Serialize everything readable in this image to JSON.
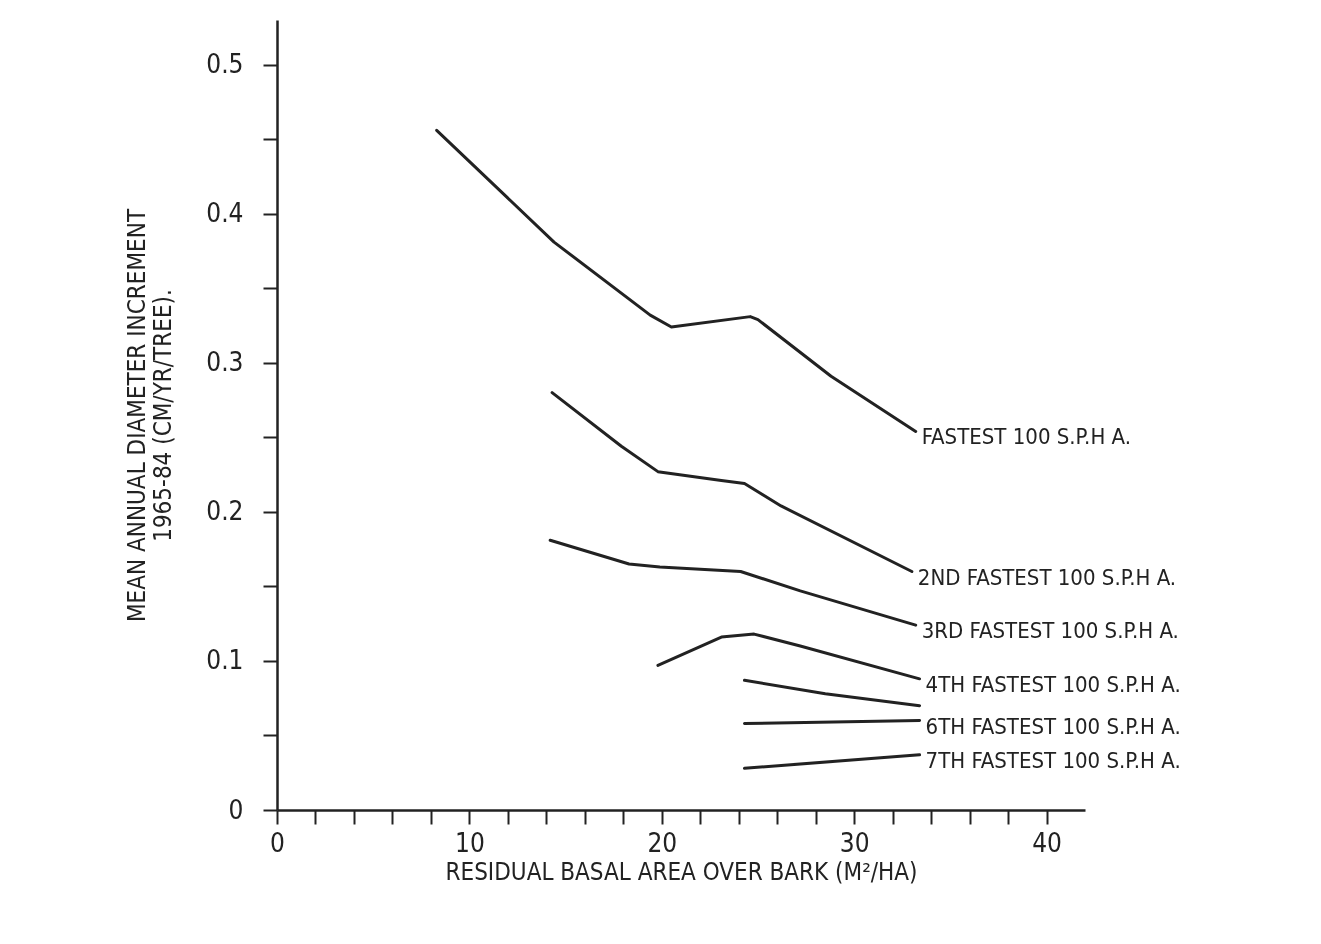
{
  "chart_data": {
    "type": "line",
    "xlabel": "RESIDUAL BASAL AREA OVER BARK (M²/HA)",
    "ylabel": "MEAN ANNUAL DIAMETER INCREMENT\n1965-84 (CM/YR/TREE).",
    "xlim": [
      0,
      42
    ],
    "ylim": [
      0,
      0.53
    ],
    "xticks": [
      0,
      {
        "value": 2,
        "label": null
      },
      {
        "value": 4,
        "label": null
      },
      {
        "value": 6,
        "label": null
      },
      {
        "value": 8,
        "label": null
      },
      10,
      {
        "value": 12,
        "label": null
      },
      {
        "value": 14,
        "label": null
      },
      {
        "value": 16,
        "label": null
      },
      {
        "value": 18,
        "label": null
      },
      20,
      {
        "value": 22,
        "label": null
      },
      {
        "value": 24,
        "label": null
      },
      {
        "value": 26,
        "label": null
      },
      {
        "value": 28,
        "label": null
      },
      30,
      {
        "value": 32,
        "label": null
      },
      {
        "value": 34,
        "label": null
      },
      {
        "value": 36,
        "label": null
      },
      {
        "value": 38,
        "label": null
      },
      40
    ],
    "yticks": [
      0,
      {
        "value": 0.05,
        "label": null
      },
      0.1,
      {
        "value": 0.15,
        "label": null
      },
      0.2,
      {
        "value": 0.25,
        "label": null
      },
      0.3,
      {
        "value": 0.35,
        "label": null
      },
      0.4,
      {
        "value": 0.45,
        "label": null
      },
      0.5
    ],
    "grid": false,
    "marker": "none",
    "line_style": "solid",
    "series": [
      {
        "name": "FASTEST 100 S.P.H A.",
        "color": "#222222",
        "x": [
          8.3,
          14.4,
          19.4,
          20.5,
          24.6,
          25.0,
          28.8,
          33.2
        ],
        "values": [
          0.456,
          0.381,
          0.332,
          0.324,
          0.331,
          0.329,
          0.291,
          0.254
        ]
      },
      {
        "name": "2ND FASTEST 100 S.P.H A.",
        "color": "#222222",
        "x": [
          14.3,
          17.9,
          19.8,
          23.1,
          24.3,
          26.2,
          33.0
        ],
        "values": [
          0.28,
          0.244,
          0.227,
          0.221,
          0.219,
          0.204,
          0.16
        ]
      },
      {
        "name": "3RD FASTEST 100 S.P.H A.",
        "color": "#222222",
        "x": [
          14.2,
          18.3,
          19.9,
          24.1,
          27.2,
          33.2
        ],
        "values": [
          0.181,
          0.165,
          0.163,
          0.16,
          0.147,
          0.124
        ]
      },
      {
        "name": "4TH FASTEST 100 S.P.H A.",
        "color": "#222222",
        "x": [
          19.8,
          23.1,
          24.8,
          27.2,
          33.4
        ],
        "values": [
          0.097,
          0.116,
          0.118,
          0.11,
          0.088
        ]
      },
      {
        "color": "#222222",
        "x": [
          24.3,
          28.5,
          33.4
        ],
        "values": [
          0.087,
          0.078,
          0.07
        ]
      },
      {
        "name": "6TH FASTEST 100 S.P.H A.",
        "color": "#222222",
        "x": [
          24.3,
          33.4
        ],
        "values": [
          0.058,
          0.06
        ]
      },
      {
        "name": "7TH FASTEST 100 S.P.H A.",
        "color": "#222222",
        "x": [
          24.3,
          33.4
        ],
        "values": [
          0.028,
          0.037
        ]
      }
    ]
  }
}
